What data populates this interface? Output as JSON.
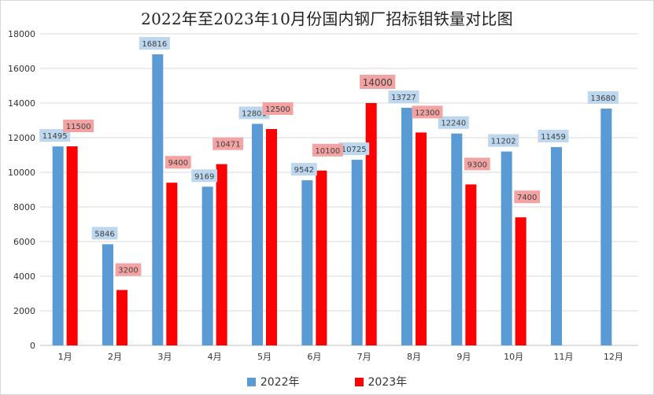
{
  "chart_data": {
    "type": "bar",
    "title": "2022年至2023年10月份国内钢厂招标钼铁量对比图",
    "xlabel": "",
    "ylabel": "",
    "categories": [
      "1月",
      "2月",
      "3月",
      "4月",
      "5月",
      "6月",
      "7月",
      "8月",
      "9月",
      "10月",
      "11月",
      "12月"
    ],
    "ylim": [
      0,
      18000
    ],
    "yticks": [
      0,
      2000,
      4000,
      6000,
      8000,
      10000,
      12000,
      14000,
      16000,
      18000
    ],
    "grid": true,
    "legend_position": "bottom",
    "series": [
      {
        "name": "2022年",
        "color": "#5b9bd5",
        "label_bg": "#bdd7ee",
        "values": [
          11495,
          5846,
          16816,
          9169,
          12801,
          9542,
          10725,
          13727,
          12240,
          11202,
          11459,
          13680
        ],
        "labels": [
          "11495",
          "5846",
          "16816",
          "9169",
          "12801",
          "9542",
          "10725",
          "13727",
          "12240",
          "11202",
          "11459",
          "13680"
        ]
      },
      {
        "name": "2023年",
        "color": "#ff0000",
        "label_bg": "#f4a3a3",
        "values": [
          11500,
          3200,
          9400,
          10471,
          12500,
          10100,
          14000,
          12300,
          9300,
          7400,
          null,
          null
        ],
        "labels": [
          "11500",
          "3200",
          "9400",
          "10471",
          "12500",
          "10100",
          "14000",
          "12300",
          "9300",
          "7400",
          "",
          ""
        ]
      }
    ]
  }
}
